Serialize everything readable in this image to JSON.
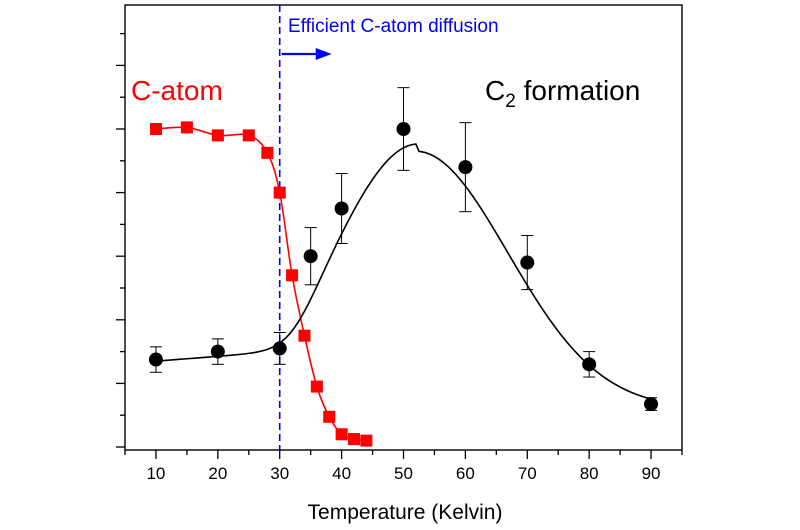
{
  "chart_data": {
    "type": "scatter",
    "xlabel": "Temperature (Kelvin)",
    "ylabel": "",
    "xlim": [
      5,
      95
    ],
    "ylim": [
      0,
      100
    ],
    "x_ticks": [
      10,
      20,
      30,
      40,
      50,
      60,
      70,
      80,
      90
    ],
    "x_tick_labels": [
      "10",
      "20",
      "30",
      "40",
      "50",
      "60",
      "70",
      "80",
      "90"
    ],
    "y_ticks_labeled": false,
    "grid": false,
    "colors": {
      "c_atom": "#ff0000",
      "c2": "#000000",
      "diffusion": "#0000ff"
    },
    "annotations": {
      "diffusion_label": "Efficient C-atom diffusion",
      "diffusion_x": 30,
      "c_atom_label": "C-atom",
      "c2_label_main": "C",
      "c2_label_sub": "2",
      "c2_label_rest": " formation"
    },
    "series": [
      {
        "key": "c_atom",
        "marker": "square",
        "x": [
          10,
          15,
          20,
          25,
          28,
          30,
          32,
          34,
          36,
          38,
          40,
          42,
          44
        ],
        "y": [
          100,
          100.5,
          98,
          98,
          92.5,
          80,
          54,
          35,
          19,
          9.5,
          4,
          2.5,
          2
        ],
        "err": [
          1.2,
          1.2,
          1.2,
          1.2,
          1.5,
          1.2,
          1.2,
          1.2,
          1.5,
          1.2,
          1,
          0.8,
          0.8
        ]
      },
      {
        "key": "c2",
        "marker": "circle",
        "x": [
          10,
          20,
          30,
          35,
          40,
          50,
          60,
          70,
          80,
          90
        ],
        "y": [
          27.5,
          30,
          31,
          60,
          75,
          100,
          88,
          58,
          26,
          13.5
        ],
        "err": [
          4,
          4,
          5,
          9,
          11,
          13,
          14,
          8.5,
          4,
          2
        ]
      }
    ]
  }
}
